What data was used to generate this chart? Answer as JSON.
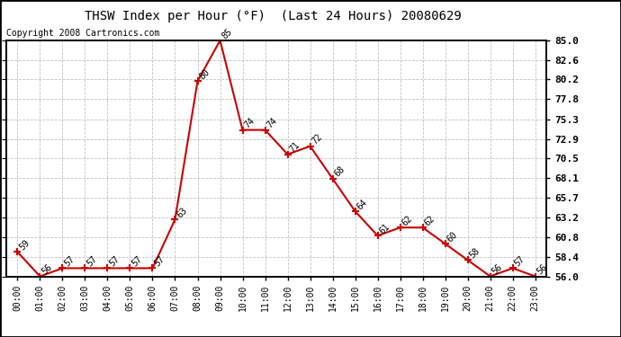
{
  "title": "THSW Index per Hour (°F)  (Last 24 Hours) 20080629",
  "copyright": "Copyright 2008 Cartronics.com",
  "hours": [
    "00:00",
    "01:00",
    "02:00",
    "03:00",
    "04:00",
    "05:00",
    "06:00",
    "07:00",
    "08:00",
    "09:00",
    "10:00",
    "11:00",
    "12:00",
    "13:00",
    "14:00",
    "15:00",
    "16:00",
    "17:00",
    "18:00",
    "19:00",
    "20:00",
    "21:00",
    "22:00",
    "23:00"
  ],
  "values": [
    59,
    56,
    57,
    57,
    57,
    57,
    57,
    63,
    80,
    85,
    74,
    74,
    71,
    72,
    68,
    64,
    61,
    62,
    62,
    60,
    58,
    56,
    57,
    56
  ],
  "line_color": "#cc0000",
  "marker_color": "#cc0000",
  "bg_color": "#ffffff",
  "grid_color": "#bbbbbb",
  "ylim_min": 56.0,
  "ylim_max": 85.0,
  "yticks": [
    56.0,
    58.4,
    60.8,
    63.2,
    65.7,
    68.1,
    70.5,
    72.9,
    75.3,
    77.8,
    80.2,
    82.6,
    85.0
  ],
  "title_fontsize": 10,
  "copyright_fontsize": 7,
  "label_fontsize": 7,
  "ytick_fontsize": 8,
  "annot_fontsize": 7
}
